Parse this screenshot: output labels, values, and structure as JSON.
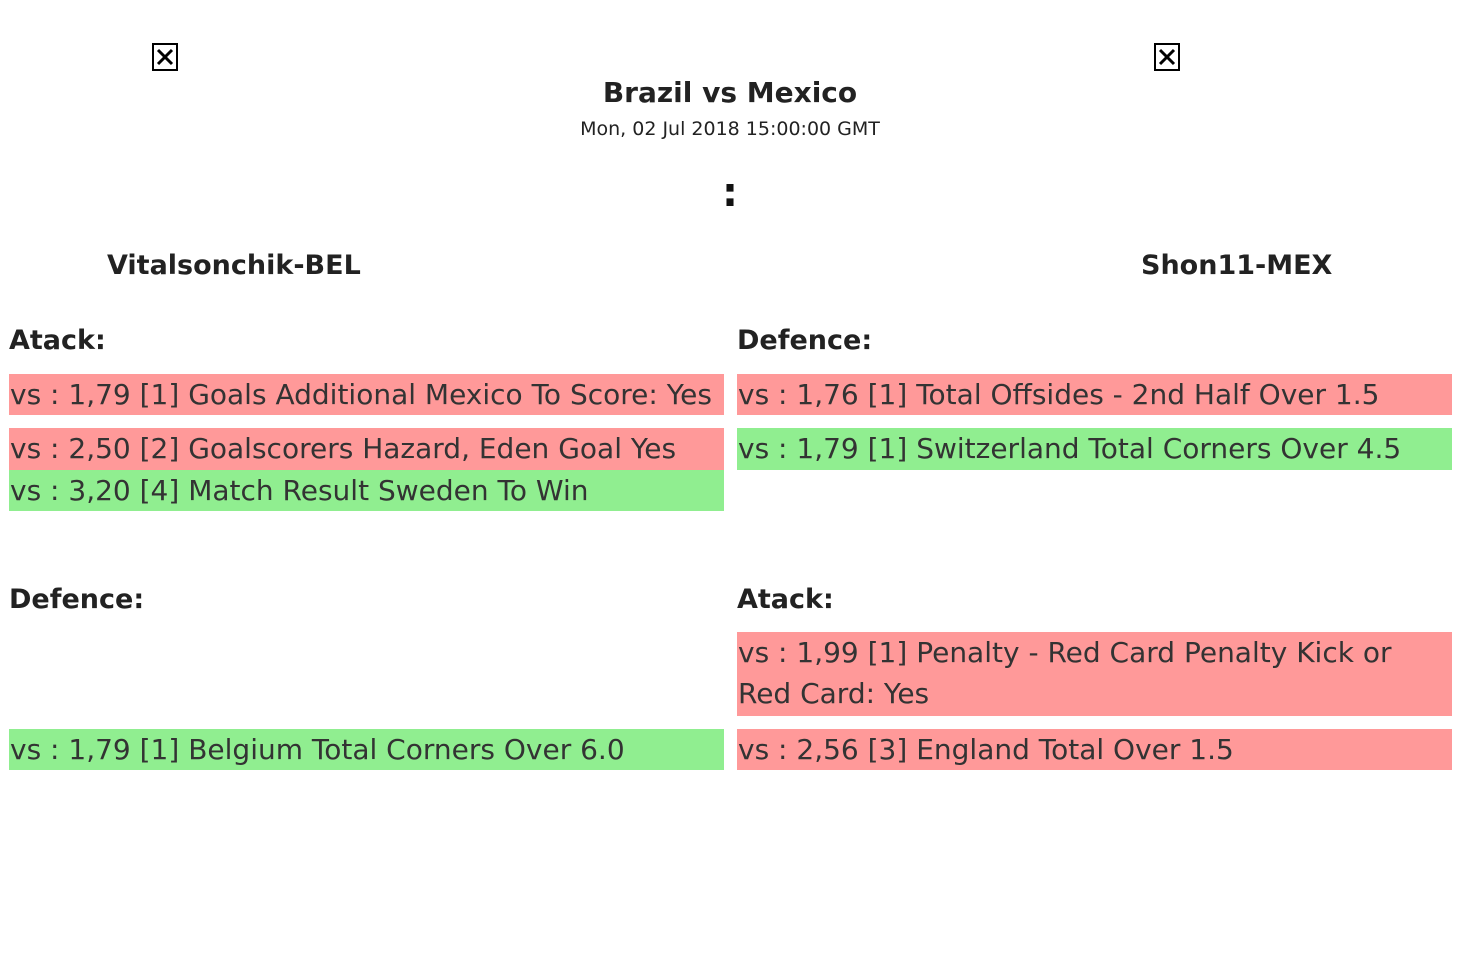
{
  "match": {
    "title": "Brazil vs Mexico",
    "date": "Mon, 02 Jul 2018 15:00:00 GMT",
    "score": ":"
  },
  "flags": {
    "left_icon": "broken-image-icon",
    "right_icon": "broken-image-icon"
  },
  "players": {
    "left": "Vitalsonchik-BEL",
    "right": "Shon11-MEX"
  },
  "left": {
    "atack": {
      "title": "Atack:",
      "bets": [
        {
          "text": "vs : 1,79 [1] Goals Additional Mexico To Score: Yes",
          "status": "lose"
        },
        {
          "text": "vs : 2,50 [2] Goalscorers Hazard, Eden Goal Yes",
          "status": "lose"
        },
        {
          "text": "vs : 3,20 [4] Match Result Sweden To Win",
          "status": "win"
        }
      ]
    },
    "defence": {
      "title": "Defence:",
      "bets": [
        {
          "text": "vs : 1,79 [1] Belgium Total Corners Over 6.0",
          "status": "win"
        }
      ]
    }
  },
  "right": {
    "defence": {
      "title": "Defence:",
      "bets": [
        {
          "text": "vs : 1,76 [1] Total Offsides - 2nd Half Over 1.5",
          "status": "lose"
        },
        {
          "text": "vs : 1,79 [1] Switzerland Total Corners Over 4.5",
          "status": "win"
        }
      ]
    },
    "atack": {
      "title": "Atack:",
      "bets": [
        {
          "text": "vs : 1,99 [1] Penalty - Red Card Penalty Kick or Red Card: Yes",
          "status": "lose"
        },
        {
          "text": "vs : 2,56 [3] England Total Over 1.5",
          "status": "lose"
        }
      ]
    }
  },
  "colors": {
    "lose": "#ff9999",
    "win": "#90ee90"
  }
}
